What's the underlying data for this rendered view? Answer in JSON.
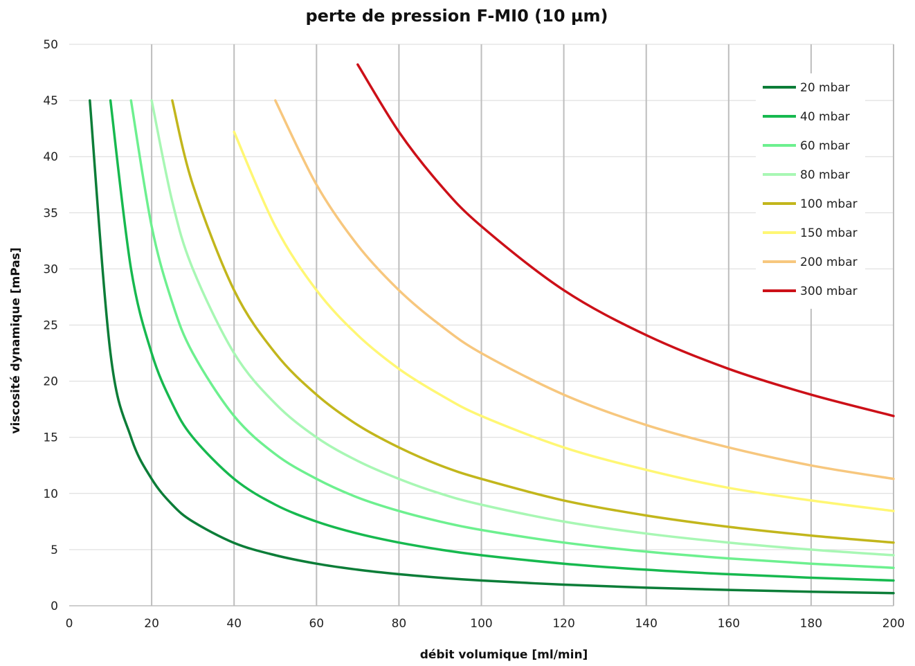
{
  "chart_data": {
    "type": "line",
    "title": "perte de pression F-MI0 (10 µm)",
    "xlabel": "débit volumique [ml/min]",
    "ylabel": "viscosité dynamique [mPas]",
    "xlim": [
      0,
      200
    ],
    "ylim": [
      0,
      50
    ],
    "x_ticks": [
      "0",
      "20",
      "40",
      "60",
      "80",
      "100",
      "120",
      "140",
      "160",
      "180",
      "200"
    ],
    "y_ticks": [
      "0",
      "5",
      "10",
      "15",
      "20",
      "25",
      "30",
      "35",
      "40",
      "45",
      "50"
    ],
    "grid": {
      "vertical": true,
      "horizontal": true
    },
    "legend_position": "top-right",
    "x": [
      5,
      10,
      15,
      20,
      25,
      30,
      40,
      50,
      60,
      70,
      80,
      90,
      100,
      120,
      140,
      160,
      180,
      200
    ],
    "series": [
      {
        "name": "20 mbar",
        "color": "#0c7d38",
        "values": [
          45.0,
          22.5,
          15.0,
          11.3,
          9.0,
          7.5,
          5.6,
          4.5,
          3.75,
          3.21,
          2.81,
          2.5,
          2.25,
          1.88,
          1.61,
          1.41,
          1.25,
          1.13
        ]
      },
      {
        "name": "40 mbar",
        "color": "#17b94f",
        "values": [
          null,
          45.0,
          30.0,
          22.5,
          18.0,
          15.0,
          11.3,
          9.0,
          7.5,
          6.43,
          5.63,
          5.0,
          4.5,
          3.75,
          3.21,
          2.81,
          2.5,
          2.25
        ]
      },
      {
        "name": "60 mbar",
        "color": "#6df08f",
        "values": [
          null,
          null,
          45.0,
          33.8,
          27.0,
          22.5,
          16.9,
          13.5,
          11.3,
          9.64,
          8.44,
          7.5,
          6.75,
          5.63,
          4.82,
          4.22,
          3.75,
          3.38
        ]
      },
      {
        "name": "80 mbar",
        "color": "#a8f7b4",
        "values": [
          null,
          null,
          null,
          45.0,
          36.0,
          30.0,
          22.5,
          18.0,
          15.0,
          12.9,
          11.3,
          10.0,
          9.0,
          7.5,
          6.43,
          5.63,
          5.0,
          4.5
        ]
      },
      {
        "name": "100 mbar",
        "color": "#c2b61c",
        "values": [
          null,
          null,
          null,
          null,
          45.0,
          37.5,
          28.1,
          22.5,
          18.8,
          16.1,
          14.1,
          12.5,
          11.3,
          9.38,
          8.04,
          7.03,
          6.25,
          5.63
        ]
      },
      {
        "name": "150 mbar",
        "color": "#fff774",
        "values": [
          null,
          null,
          null,
          null,
          null,
          null,
          42.2,
          33.8,
          28.1,
          24.1,
          21.1,
          18.8,
          16.9,
          14.1,
          12.1,
          10.5,
          9.38,
          8.44
        ]
      },
      {
        "name": "200 mbar",
        "color": "#f7c77e",
        "values": [
          null,
          null,
          null,
          null,
          null,
          null,
          null,
          45.0,
          37.5,
          32.1,
          28.1,
          25.0,
          22.5,
          18.8,
          16.1,
          14.1,
          12.5,
          11.3
        ]
      },
      {
        "name": "300 mbar",
        "color": "#cc1018",
        "values": [
          null,
          null,
          null,
          null,
          null,
          null,
          null,
          null,
          null,
          48.2,
          42.2,
          37.5,
          33.8,
          28.1,
          24.1,
          21.1,
          18.8,
          16.9
        ]
      }
    ]
  }
}
